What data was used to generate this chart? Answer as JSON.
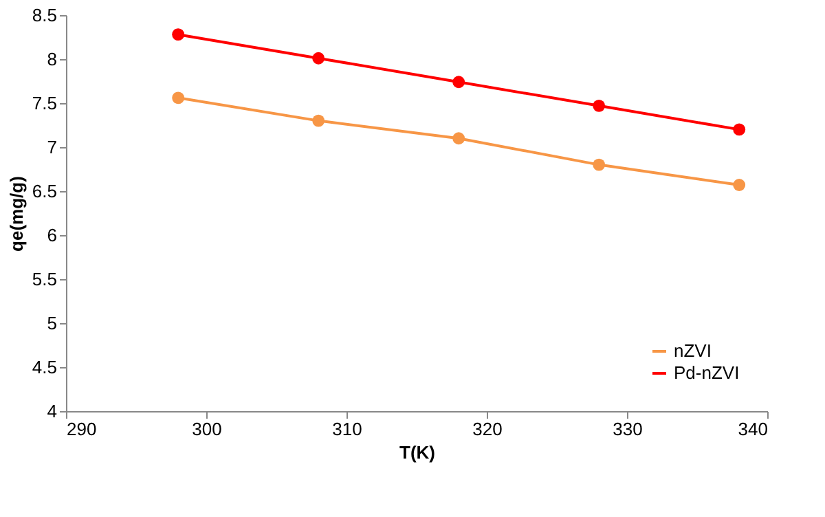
{
  "chart_data": {
    "type": "line",
    "xlabel": "T(K)",
    "ylabel": "qe(mg/g)",
    "x": [
      298,
      308,
      318,
      328,
      338
    ],
    "series": [
      {
        "name": "nZVI",
        "color": "#f79646",
        "values": [
          7.56,
          7.3,
          7.1,
          6.8,
          6.57
        ]
      },
      {
        "name": "Pd-nZVI",
        "color": "#ff0000",
        "values": [
          8.28,
          8.01,
          7.74,
          7.47,
          7.2
        ]
      }
    ],
    "xlim": [
      290,
      340
    ],
    "xticks": [
      290,
      300,
      310,
      320,
      330,
      340
    ],
    "ylim": [
      4,
      8.5
    ],
    "yticks": [
      4,
      4.5,
      5,
      5.5,
      6,
      6.5,
      7,
      7.5,
      8,
      8.5
    ],
    "grid": false,
    "legend": "bottom right",
    "marker": "circle",
    "line_style": "solid"
  }
}
